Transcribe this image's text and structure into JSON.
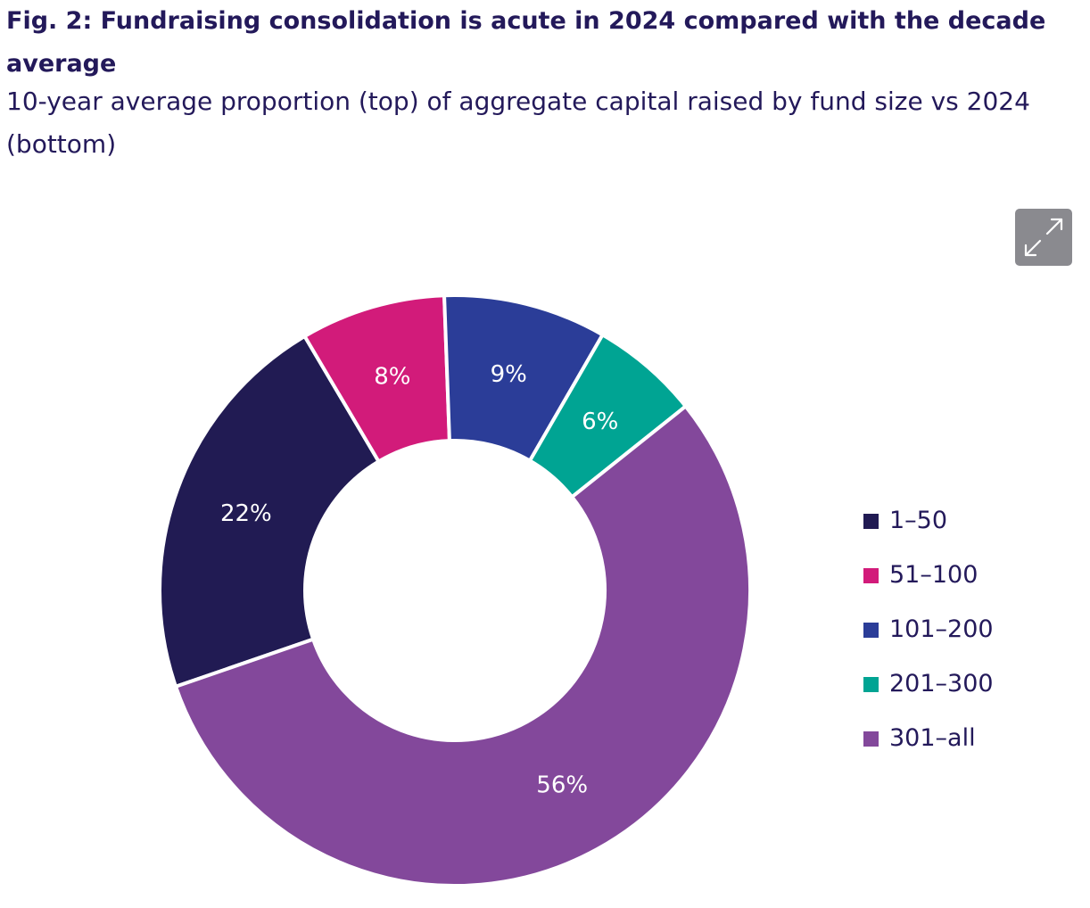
{
  "figure": {
    "title": "Fig. 2: Fundraising consolidation is acute in 2024 compared with the decade average",
    "subtitle": "10-year average proportion (top) of aggregate capital raised by fund size vs 2024 (bottom)"
  },
  "toolbar": {
    "expand_icon": "expand-arrows-icon"
  },
  "chart_data": {
    "type": "pie",
    "donut": true,
    "categories": [
      "1–50",
      "51–100",
      "101–200",
      "201–300",
      "301–all"
    ],
    "values": [
      22,
      8,
      9,
      6,
      56
    ],
    "labels": [
      "22%",
      "8%",
      "9%",
      "6%",
      "56%"
    ],
    "unit": "%",
    "colors": [
      "#211b53",
      "#d21b7a",
      "#2b3d98",
      "#00a493",
      "#83489b"
    ],
    "legend_position": "right"
  }
}
